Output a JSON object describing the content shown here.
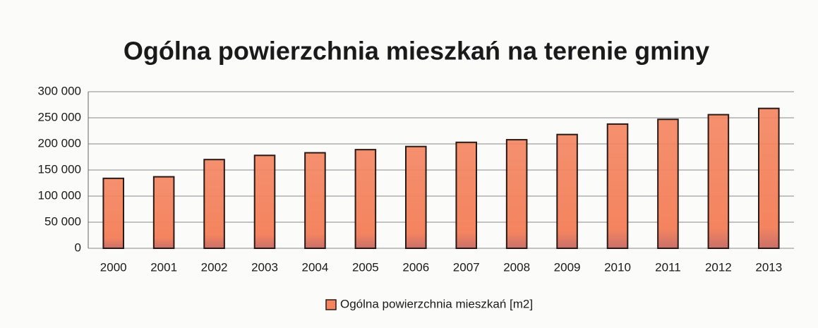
{
  "chart_data": {
    "type": "bar",
    "title": "Ogólna powierzchnia mieszkań na terenie gminy",
    "categories": [
      "2000",
      "2001",
      "2002",
      "2003",
      "2004",
      "2005",
      "2006",
      "2007",
      "2008",
      "2009",
      "2010",
      "2011",
      "2012",
      "2013"
    ],
    "series": [
      {
        "name": "Ogólna powierzchnia mieszkań [m2]",
        "color": "#f4845f",
        "values": [
          134000,
          137000,
          170000,
          178000,
          183000,
          189000,
          195000,
          203000,
          208000,
          218000,
          238000,
          247000,
          256000,
          268000
        ]
      }
    ],
    "ylim": [
      0,
      300000
    ],
    "yticks": [
      0,
      {
        "value": 50000,
        "label": "50 000"
      },
      {
        "value": 100000,
        "label": "100 000"
      },
      {
        "value": 150000,
        "label": "150 000"
      },
      {
        "value": 200000,
        "label": "200 000"
      },
      {
        "value": 250000,
        "label": "250 000"
      },
      {
        "value": 300000,
        "label": "300 000"
      }
    ],
    "grid": true,
    "legend": "bottom"
  }
}
